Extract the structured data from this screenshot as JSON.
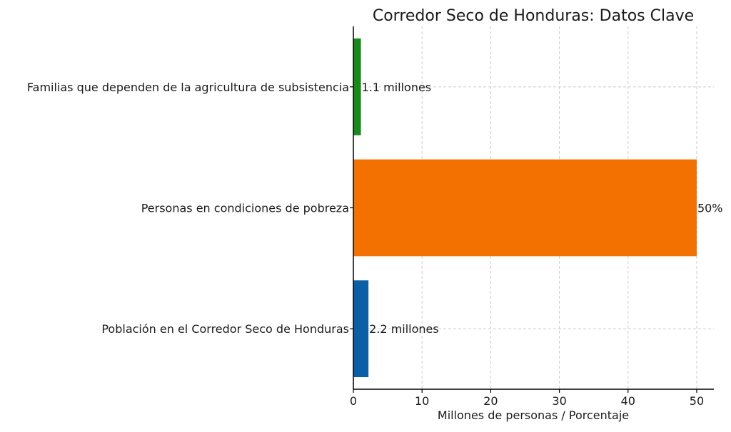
{
  "chart_data": {
    "type": "bar",
    "orientation": "horizontal",
    "title": "Corredor Seco de Honduras: Datos Clave",
    "xlabel": "Millones de personas / Porcentaje",
    "ylabel": "",
    "xlim": [
      0,
      52.5
    ],
    "xticks": [
      0,
      10,
      20,
      30,
      40,
      50
    ],
    "grid": true,
    "categories": [
      "Población en el Corredor Seco de Honduras",
      "Personas en condiciones de pobreza",
      "Familias que dependen de la agricultura de subsistencia"
    ],
    "values": [
      2.2,
      50,
      1.1
    ],
    "data_labels": [
      "2.2 millones",
      "50%",
      "1.1 millones"
    ],
    "colors": [
      "#0a5fa6",
      "#f27100",
      "#188a18"
    ]
  }
}
